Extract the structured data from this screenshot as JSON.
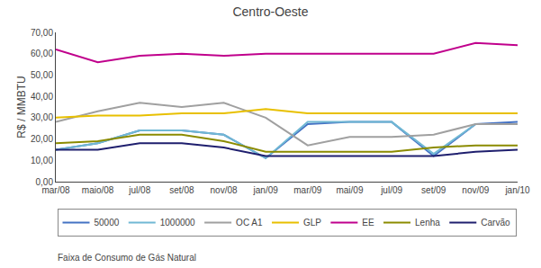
{
  "chart_data": {
    "type": "line",
    "title": "Centro-Oeste",
    "y_label": "R$ / MMBTU",
    "categories": [
      "mar/08",
      "maio/08",
      "jul/08",
      "set/08",
      "nov/08",
      "jan/09",
      "mar/09",
      "mai/09",
      "jul/09",
      "set/09",
      "nov/09",
      "jan/10"
    ],
    "series": [
      {
        "name": "50000",
        "color": "#4472C4",
        "values": [
          15,
          18,
          24,
          24,
          22,
          11,
          27,
          28,
          28,
          12,
          27,
          28
        ]
      },
      {
        "name": "1000000",
        "color": "#70B8D4",
        "values": [
          15,
          18,
          24,
          24,
          22,
          11,
          28,
          28,
          28,
          13,
          27,
          27
        ]
      },
      {
        "name": "OC A1",
        "color": "#A0A0A0",
        "values": [
          28,
          33,
          37,
          35,
          37,
          30,
          17,
          21,
          21,
          22,
          27,
          27
        ]
      },
      {
        "name": "GLP",
        "color": "#E8C000",
        "values": [
          30,
          31,
          31,
          32,
          32,
          34,
          32,
          32,
          32,
          32,
          32,
          32
        ]
      },
      {
        "name": "EE",
        "color": "#C0008C",
        "values": [
          62,
          56,
          59,
          60,
          59,
          60,
          60,
          60,
          60,
          60,
          65,
          64
        ]
      },
      {
        "name": "Lenha",
        "color": "#8B8B00",
        "values": [
          18,
          19,
          22,
          22,
          19,
          14,
          14,
          14,
          14,
          16,
          17,
          17
        ]
      },
      {
        "name": "Carvão",
        "color": "#1F1F6E",
        "values": [
          15,
          15,
          18,
          18,
          16,
          12,
          12,
          12,
          12,
          12,
          14,
          15
        ]
      }
    ],
    "ylim": [
      0,
      70
    ],
    "yticks": [
      {
        "value": 0,
        "label": "0,00"
      },
      {
        "value": 10,
        "label": "10,00"
      },
      {
        "value": 20,
        "label": "20,00"
      },
      {
        "value": 30,
        "label": "30,00"
      },
      {
        "value": 40,
        "label": "40,00"
      },
      {
        "value": 50,
        "label": "50,00"
      },
      {
        "value": 60,
        "label": "60,00"
      },
      {
        "value": 70,
        "label": "70,00"
      }
    ],
    "annotations": [
      "Faixa de Consumo de Gás Natural"
    ],
    "grid": false,
    "legend": "bottom"
  }
}
